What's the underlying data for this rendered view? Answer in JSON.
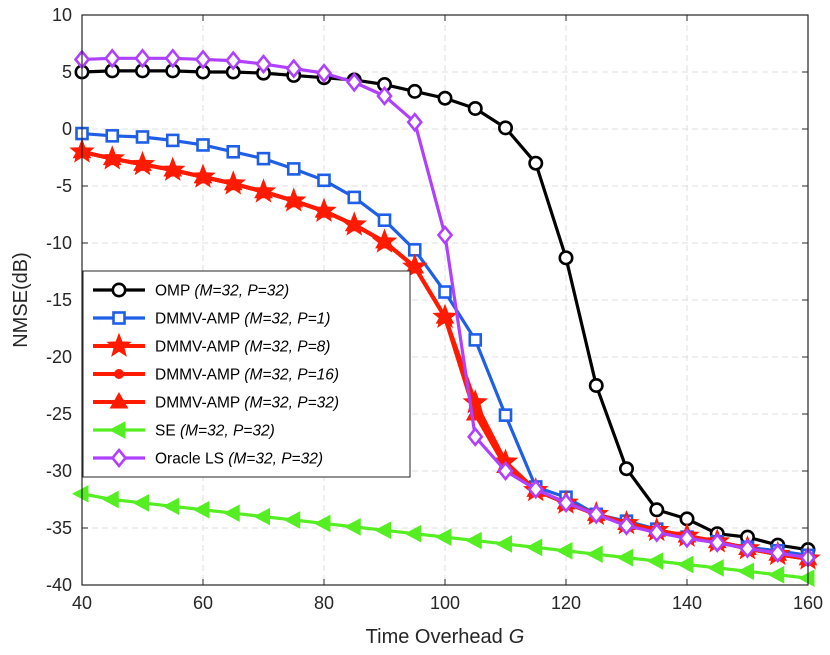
{
  "chart_data": {
    "type": "line",
    "xlabel": "Time Overhead",
    "xlabel_symbol": "G",
    "ylabel": "NMSE(dB)",
    "xlim": [
      40,
      160
    ],
    "ylim": [
      -40,
      10
    ],
    "xticks": [
      40,
      60,
      80,
      100,
      120,
      140,
      160
    ],
    "yticks": [
      10,
      5,
      0,
      -5,
      -10,
      -15,
      -20,
      -25,
      -30,
      -35,
      -40
    ],
    "grid": true,
    "legend_position": "middle-left",
    "x": [
      40,
      45,
      50,
      55,
      60,
      65,
      70,
      75,
      80,
      85,
      90,
      95,
      100,
      105,
      110,
      115,
      120,
      125,
      130,
      135,
      140,
      145,
      150,
      155,
      160
    ],
    "series": [
      {
        "name": "OMP",
        "params": "(M=32, P=32)",
        "color": "#000000",
        "marker": "circle",
        "values": [
          5.0,
          5.1,
          5.1,
          5.1,
          5.0,
          5.0,
          4.9,
          4.7,
          4.5,
          4.3,
          3.9,
          3.3,
          2.7,
          1.8,
          0.1,
          -3.0,
          -11.3,
          -22.5,
          -29.8,
          -33.4,
          -34.2,
          -35.5,
          -35.8,
          -36.5,
          -36.9
        ]
      },
      {
        "name": "DMMV-AMP",
        "params": "(M=32, P=1)",
        "color": "#1f5fe6",
        "marker": "square",
        "values": [
          -0.4,
          -0.6,
          -0.7,
          -1.0,
          -1.4,
          -2.0,
          -2.6,
          -3.5,
          -4.5,
          -6.0,
          -8.0,
          -10.6,
          -14.3,
          -18.5,
          -25.1,
          -31.4,
          -32.3,
          -33.8,
          -34.4,
          -35.1,
          -35.8,
          -36.2,
          -36.7,
          -37.0,
          -37.4
        ]
      },
      {
        "name": "DMMV-AMP",
        "params": "(M=32, P=8)",
        "color": "#ff1a00",
        "marker": "star",
        "values": [
          -2.0,
          -2.6,
          -3.1,
          -3.6,
          -4.2,
          -4.8,
          -5.5,
          -6.3,
          -7.2,
          -8.4,
          -9.9,
          -12.1,
          -16.5,
          -24.0,
          -29.2,
          -31.7,
          -32.8,
          -33.8,
          -34.6,
          -35.2,
          -35.7,
          -36.2,
          -36.8,
          -37.3,
          -37.7
        ]
      },
      {
        "name": "DMMV-AMP",
        "params": "(M=32, P=16)",
        "color": "#ff1a00",
        "marker": "dot",
        "values": [
          -2.0,
          -2.6,
          -3.1,
          -3.6,
          -4.2,
          -4.8,
          -5.5,
          -6.3,
          -7.2,
          -8.4,
          -9.9,
          -12.1,
          -16.5,
          -24.5,
          -29.4,
          -31.7,
          -32.8,
          -33.8,
          -34.6,
          -35.2,
          -35.7,
          -36.2,
          -36.8,
          -37.3,
          -37.7
        ]
      },
      {
        "name": "DMMV-AMP",
        "params": "(M=32, P=32)",
        "color": "#ff1a00",
        "marker": "triangle-up",
        "values": [
          -2.0,
          -2.6,
          -3.1,
          -3.6,
          -4.2,
          -4.8,
          -5.5,
          -6.3,
          -7.2,
          -8.4,
          -9.9,
          -12.1,
          -16.5,
          -25.0,
          -29.6,
          -31.7,
          -32.8,
          -33.8,
          -34.6,
          -35.2,
          -35.7,
          -36.2,
          -36.8,
          -37.3,
          -37.7
        ]
      },
      {
        "name": "SE",
        "params": "(M=32, P=32)",
        "color": "#55ee22",
        "marker": "triangle-left",
        "values": [
          -32.0,
          -32.5,
          -32.8,
          -33.1,
          -33.4,
          -33.7,
          -34.0,
          -34.3,
          -34.6,
          -34.9,
          -35.2,
          -35.5,
          -35.8,
          -36.1,
          -36.4,
          -36.7,
          -37.0,
          -37.3,
          -37.6,
          -37.9,
          -38.2,
          -38.5,
          -38.8,
          -39.1,
          -39.4
        ]
      },
      {
        "name": "Oracle LS",
        "params": "(M=32, P=32)",
        "color": "#b040ff",
        "marker": "diamond",
        "values": [
          6.1,
          6.2,
          6.2,
          6.2,
          6.1,
          6.0,
          5.7,
          5.3,
          4.9,
          4.1,
          2.9,
          0.6,
          -9.3,
          -27.0,
          -30.0,
          -31.6,
          -32.8,
          -33.8,
          -34.8,
          -35.4,
          -35.9,
          -36.3,
          -36.8,
          -37.2,
          -37.6
        ]
      }
    ]
  }
}
